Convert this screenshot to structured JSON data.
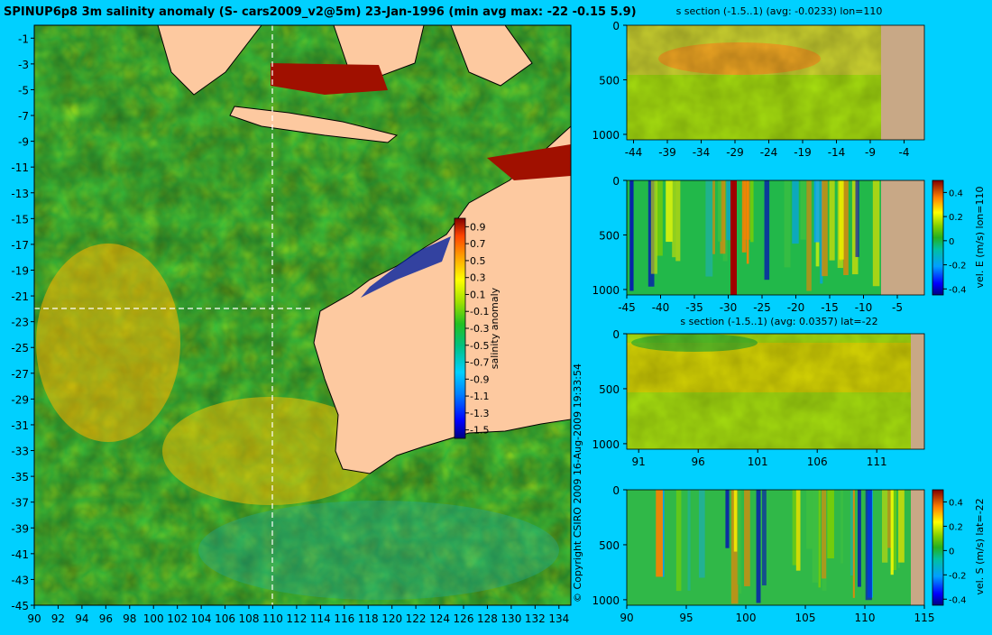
{
  "page": {
    "title": "SPINUP6p8 3m salinity anomaly (S- cars2009_v2@5m) 23-Jan-1996 (min avg max: -22 -0.15 5.9)",
    "copyright": "© Copyright CSIRO 2009   16-Aug-2009 19:33:54"
  },
  "colors": {
    "background": "#00d0ff",
    "land": "#fdc9a0",
    "section_land": "#c8a886",
    "colormap": [
      "#00007f",
      "#0000ff",
      "#007fff",
      "#00d0ff",
      "#00c080",
      "#22c022",
      "#a0e000",
      "#ffff00",
      "#ffa500",
      "#ff4500",
      "#7f0000"
    ]
  },
  "chart_data": [
    {
      "id": "map",
      "type": "heatmap",
      "title": "SPINUP6p8 3m salinity anomaly (S- cars2009_v2@5m) 23-Jan-1996 (min avg max: -22 -0.15 5.9)",
      "x_ticks": [
        "90",
        "92",
        "94",
        "96",
        "98",
        "100",
        "102",
        "104",
        "106",
        "108",
        "110",
        "112",
        "114",
        "116",
        "118",
        "120",
        "122",
        "124",
        "126",
        "128",
        "130",
        "132",
        "134"
      ],
      "y_ticks": [
        "-1",
        "-3",
        "-5",
        "-7",
        "-9",
        "-11",
        "-13",
        "-15",
        "-17",
        "-19",
        "-21",
        "-23",
        "-25",
        "-27",
        "-29",
        "-31",
        "-33",
        "-35",
        "-37",
        "-39",
        "-41",
        "-43",
        "-45"
      ],
      "xlim": [
        90,
        135
      ],
      "ylim": [
        -45,
        0
      ],
      "section_lon": 110,
      "section_lat": -22,
      "stats": {
        "min": -22,
        "avg": -0.15,
        "max": 5.9
      },
      "colorbar": {
        "label": "salinity anomaly",
        "range": [
          -1.6,
          1.0
        ],
        "ticks": [
          "0.9",
          "0.7",
          "0.5",
          "0.3",
          "0.1",
          "-0.1",
          "-0.3",
          "-0.5",
          "-0.7",
          "-0.9",
          "-1.1",
          "-1.3",
          "-1.5"
        ]
      }
    },
    {
      "id": "section1",
      "type": "heatmap",
      "title": "s section (-1.5..1) (avg: -0.0233) lon=110",
      "x_ticks": [
        "-44",
        "-39",
        "-34",
        "-29",
        "-24",
        "-19",
        "-14",
        "-9",
        "-4"
      ],
      "y_ticks": [
        "0",
        "500",
        "1000"
      ],
      "xlim": [
        -45,
        -1
      ],
      "ylim": [
        1050,
        0
      ],
      "land_from": -8,
      "avg": -0.0233
    },
    {
      "id": "section2",
      "type": "heatmap",
      "x_ticks": [
        "-45",
        "-40",
        "-35",
        "-30",
        "-25",
        "-20",
        "-15",
        "-10",
        "-5"
      ],
      "y_ticks": [
        "0",
        "500",
        "1000"
      ],
      "xlim": [
        -45,
        -1
      ],
      "ylim": [
        1050,
        0
      ],
      "land_from": -8,
      "colorbar": {
        "label": "vel. E (m/s) lon=110",
        "range": [
          -0.45,
          0.5
        ],
        "ticks": [
          "0.4",
          "0.2",
          "0",
          "-0.2",
          "-0.4"
        ]
      }
    },
    {
      "id": "section3",
      "type": "heatmap",
      "title": "s section (-1.5..1) (avg: 0.0357) lat=-22",
      "x_ticks": [
        "91",
        "96",
        "101",
        "106",
        "111"
      ],
      "y_ticks": [
        "0",
        "500",
        "1000"
      ],
      "xlim": [
        90,
        115
      ],
      "ylim": [
        1050,
        0
      ],
      "land_from": 113.5,
      "avg": 0.0357
    },
    {
      "id": "section4",
      "type": "heatmap",
      "x_ticks": [
        "90",
        "95",
        "100",
        "105",
        "110",
        "115"
      ],
      "y_ticks": [
        "0",
        "500",
        "1000"
      ],
      "xlim": [
        90,
        115
      ],
      "ylim": [
        1050,
        0
      ],
      "land_from": 113.5,
      "colorbar": {
        "label": "vel. S (m/s) lat=-22",
        "range": [
          -0.45,
          0.5
        ],
        "ticks": [
          "0.4",
          "0.2",
          "0",
          "-0.2",
          "-0.4"
        ]
      }
    }
  ]
}
